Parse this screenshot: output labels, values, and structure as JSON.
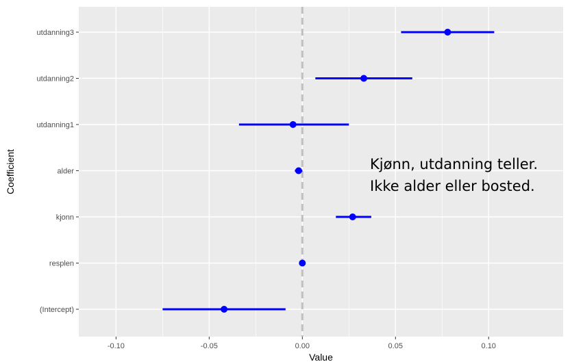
{
  "chart_data": {
    "type": "coefficient-plot",
    "xlabel": "Value",
    "ylabel": "Coefficient",
    "xlim": [
      -0.12,
      0.14
    ],
    "xticks": [
      -0.1,
      -0.05,
      0.0,
      0.05,
      0.1
    ],
    "xtick_labels": [
      "-0.10",
      "-0.05",
      "0.00",
      "0.05",
      "0.10"
    ],
    "reference_line": 0,
    "grid": true,
    "coefficients": [
      {
        "name": "utdanning3",
        "value": 0.078,
        "low": 0.053,
        "high": 0.103
      },
      {
        "name": "utdanning2",
        "value": 0.033,
        "low": 0.007,
        "high": 0.059
      },
      {
        "name": "utdanning1",
        "value": -0.005,
        "low": -0.034,
        "high": 0.025
      },
      {
        "name": "alder",
        "value": -0.002,
        "low": -0.004,
        "high": 0.0
      },
      {
        "name": "kjonn",
        "value": 0.027,
        "low": 0.018,
        "high": 0.037
      },
      {
        "name": "resplen",
        "value": 0.0,
        "low": 0.0,
        "high": 0.0
      },
      {
        "name": "(Intercept)",
        "value": -0.042,
        "low": -0.075,
        "high": -0.009
      }
    ],
    "colors": {
      "panel": "#ebebeb",
      "grid": "#ffffff",
      "point": "#0000ff",
      "reference": "#bfbfbf"
    }
  },
  "annotation": {
    "line1": "Kjønn, utdanning teller.",
    "line2": "Ikke alder eller bosted."
  }
}
